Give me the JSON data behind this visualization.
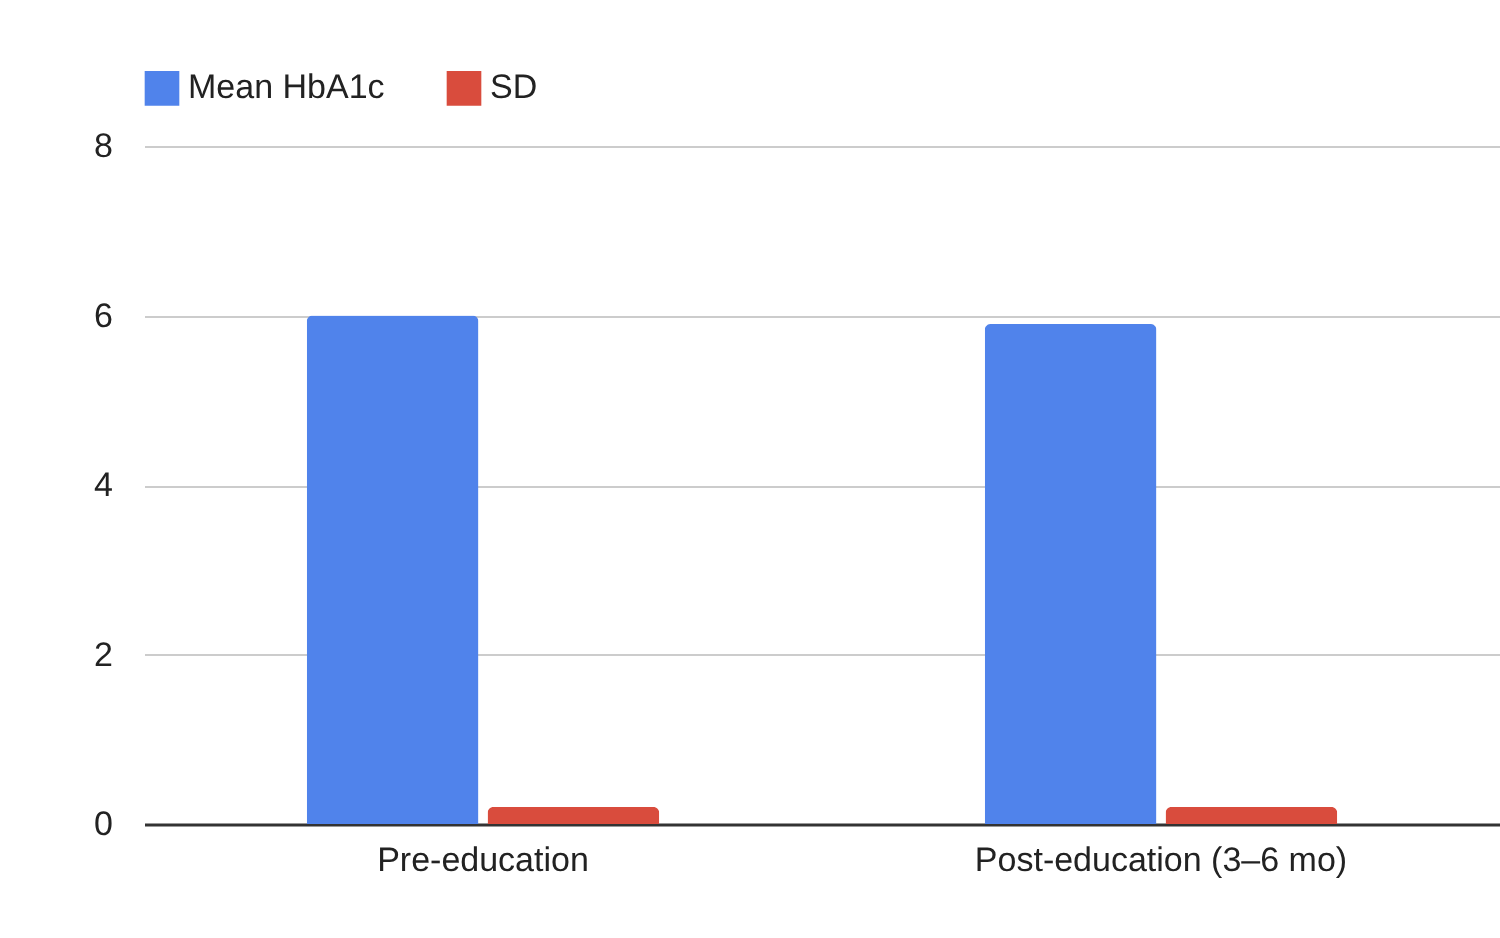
{
  "chart_data": {
    "type": "bar",
    "categories": [
      "Pre-education",
      "Post-education (3–6 mo)"
    ],
    "series": [
      {
        "name": "Mean HbA1c",
        "color": "#5083eb",
        "values": [
          6.0,
          5.9
        ]
      },
      {
        "name": "SD",
        "color": "#d94c3d",
        "values": [
          0.2,
          0.2
        ]
      }
    ],
    "ylim": [
      0,
      8
    ],
    "yticks": [
      0,
      2,
      4,
      6,
      8
    ],
    "grid": "y",
    "legend": "top"
  }
}
